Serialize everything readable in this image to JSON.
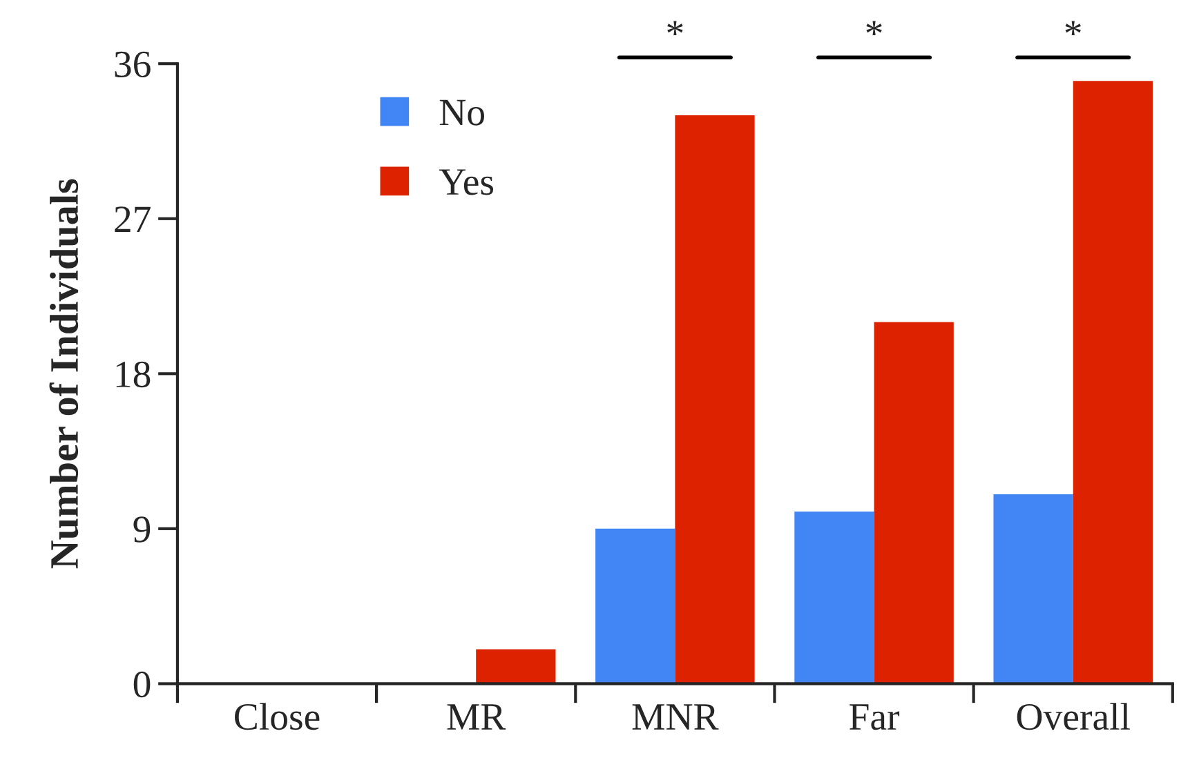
{
  "chart_data": {
    "type": "bar",
    "ylabel": "Number of Individuals",
    "categories": [
      "Close",
      "MR",
      "MNR",
      "Far",
      "Overall"
    ],
    "series": [
      {
        "name": "No",
        "color": "#4285f4",
        "values": [
          0,
          0,
          9,
          10,
          11
        ]
      },
      {
        "name": "Yes",
        "color": "#dd2200",
        "values": [
          0,
          2,
          33,
          21,
          35
        ]
      }
    ],
    "ylim": [
      0,
      36
    ],
    "yticks": [
      0,
      9,
      18,
      27,
      36
    ],
    "grid": false,
    "legend": "top left",
    "annotations": [
      "*",
      "*",
      "*"
    ]
  }
}
